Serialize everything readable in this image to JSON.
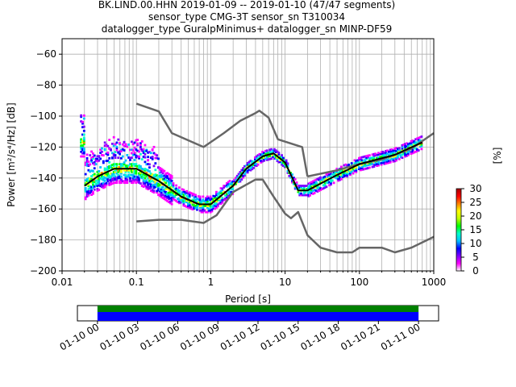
{
  "title": {
    "line1": "BK.LIND.00.HHN   2019-01-09 -- 2019-01-10  (47/47 segments)",
    "line2": "sensor_type CMG-3T sensor_sn T310034",
    "line3": "datalogger_type GuralpMinimus+ datalogger_sn MINP-DF59"
  },
  "chart_data": [
    {
      "type": "heatmap",
      "xlabel": "Period [s]",
      "ylabel": "Power [m²/s⁴/Hz] [dB]",
      "xscale": "log",
      "xlim": [
        0.01,
        1000
      ],
      "ylim": [
        -200,
        -50
      ],
      "x_ticks": [
        "0.01",
        "0.1",
        "1",
        "10",
        "100",
        "1000"
      ],
      "y_ticks": [
        "−200",
        "−180",
        "−160",
        "−140",
        "−120",
        "−100",
        "−80",
        "−60"
      ],
      "grid": true,
      "colorbar": {
        "label": "[%]",
        "range": [
          0,
          30
        ],
        "ticks": [
          "0",
          "5",
          "10",
          "15",
          "20",
          "25",
          "30"
        ]
      },
      "series": [
        {
          "name": "",
          "color": "#666666",
          "x": [
            0.1,
            0.2,
            0.3,
            0.8,
            1.5,
            2.5,
            4,
            4.5,
            6,
            8,
            17,
            20
          ],
          "y": [
            -92,
            -97,
            -111,
            -120,
            -111,
            -103,
            -98,
            -96.5,
            -101,
            -115,
            -120,
            -139
          ]
        },
        {
          "name": "",
          "color": "#666666",
          "x": [
            20,
            50,
            100,
            200,
            500,
            1000
          ],
          "y": [
            -139,
            -135,
            -131,
            -128,
            -121,
            -111
          ]
        },
        {
          "name": "",
          "color": "#666666",
          "x": [
            0.1,
            0.2,
            0.4,
            0.8,
            1.2,
            2,
            4,
            5,
            7,
            10,
            12,
            15,
            20,
            30,
            50,
            80,
            100,
            200,
            300,
            500,
            1000
          ],
          "y": [
            -168,
            -167,
            -167,
            -169,
            -164,
            -149,
            -141,
            -141,
            -152,
            -163,
            -166,
            -162,
            -177,
            -185,
            -188,
            -188,
            -185,
            -185,
            -188,
            -185,
            -178
          ]
        },
        {
          "name": "",
          "color": "#000000",
          "x": [
            0.02,
            0.03,
            0.05,
            0.1,
            0.2,
            0.4,
            0.7,
            1,
            2,
            3,
            5,
            7,
            10,
            15,
            20,
            50,
            100,
            300,
            700
          ],
          "y": [
            -145,
            -139,
            -134,
            -134,
            -142,
            -152,
            -157,
            -157,
            -145,
            -134,
            -126,
            -124,
            -130,
            -148,
            -148,
            -138,
            -131,
            -125,
            -117
          ]
        }
      ]
    },
    {
      "type": "bar",
      "x_ticks": [
        "01-10 00",
        "01-10 03",
        "01-10 06",
        "01-10 09",
        "01-10 12",
        "01-10 15",
        "01-10 18",
        "01-10 21",
        "01-11 00"
      ],
      "xlim_hours": [
        -1.5,
        25.5
      ],
      "series": [
        {
          "name": "",
          "color": "#008000",
          "start_hour": 0,
          "end_hour": 24
        },
        {
          "name": "",
          "color": "#0000ff",
          "start_hour": 0,
          "end_hour": 24
        }
      ]
    }
  ]
}
